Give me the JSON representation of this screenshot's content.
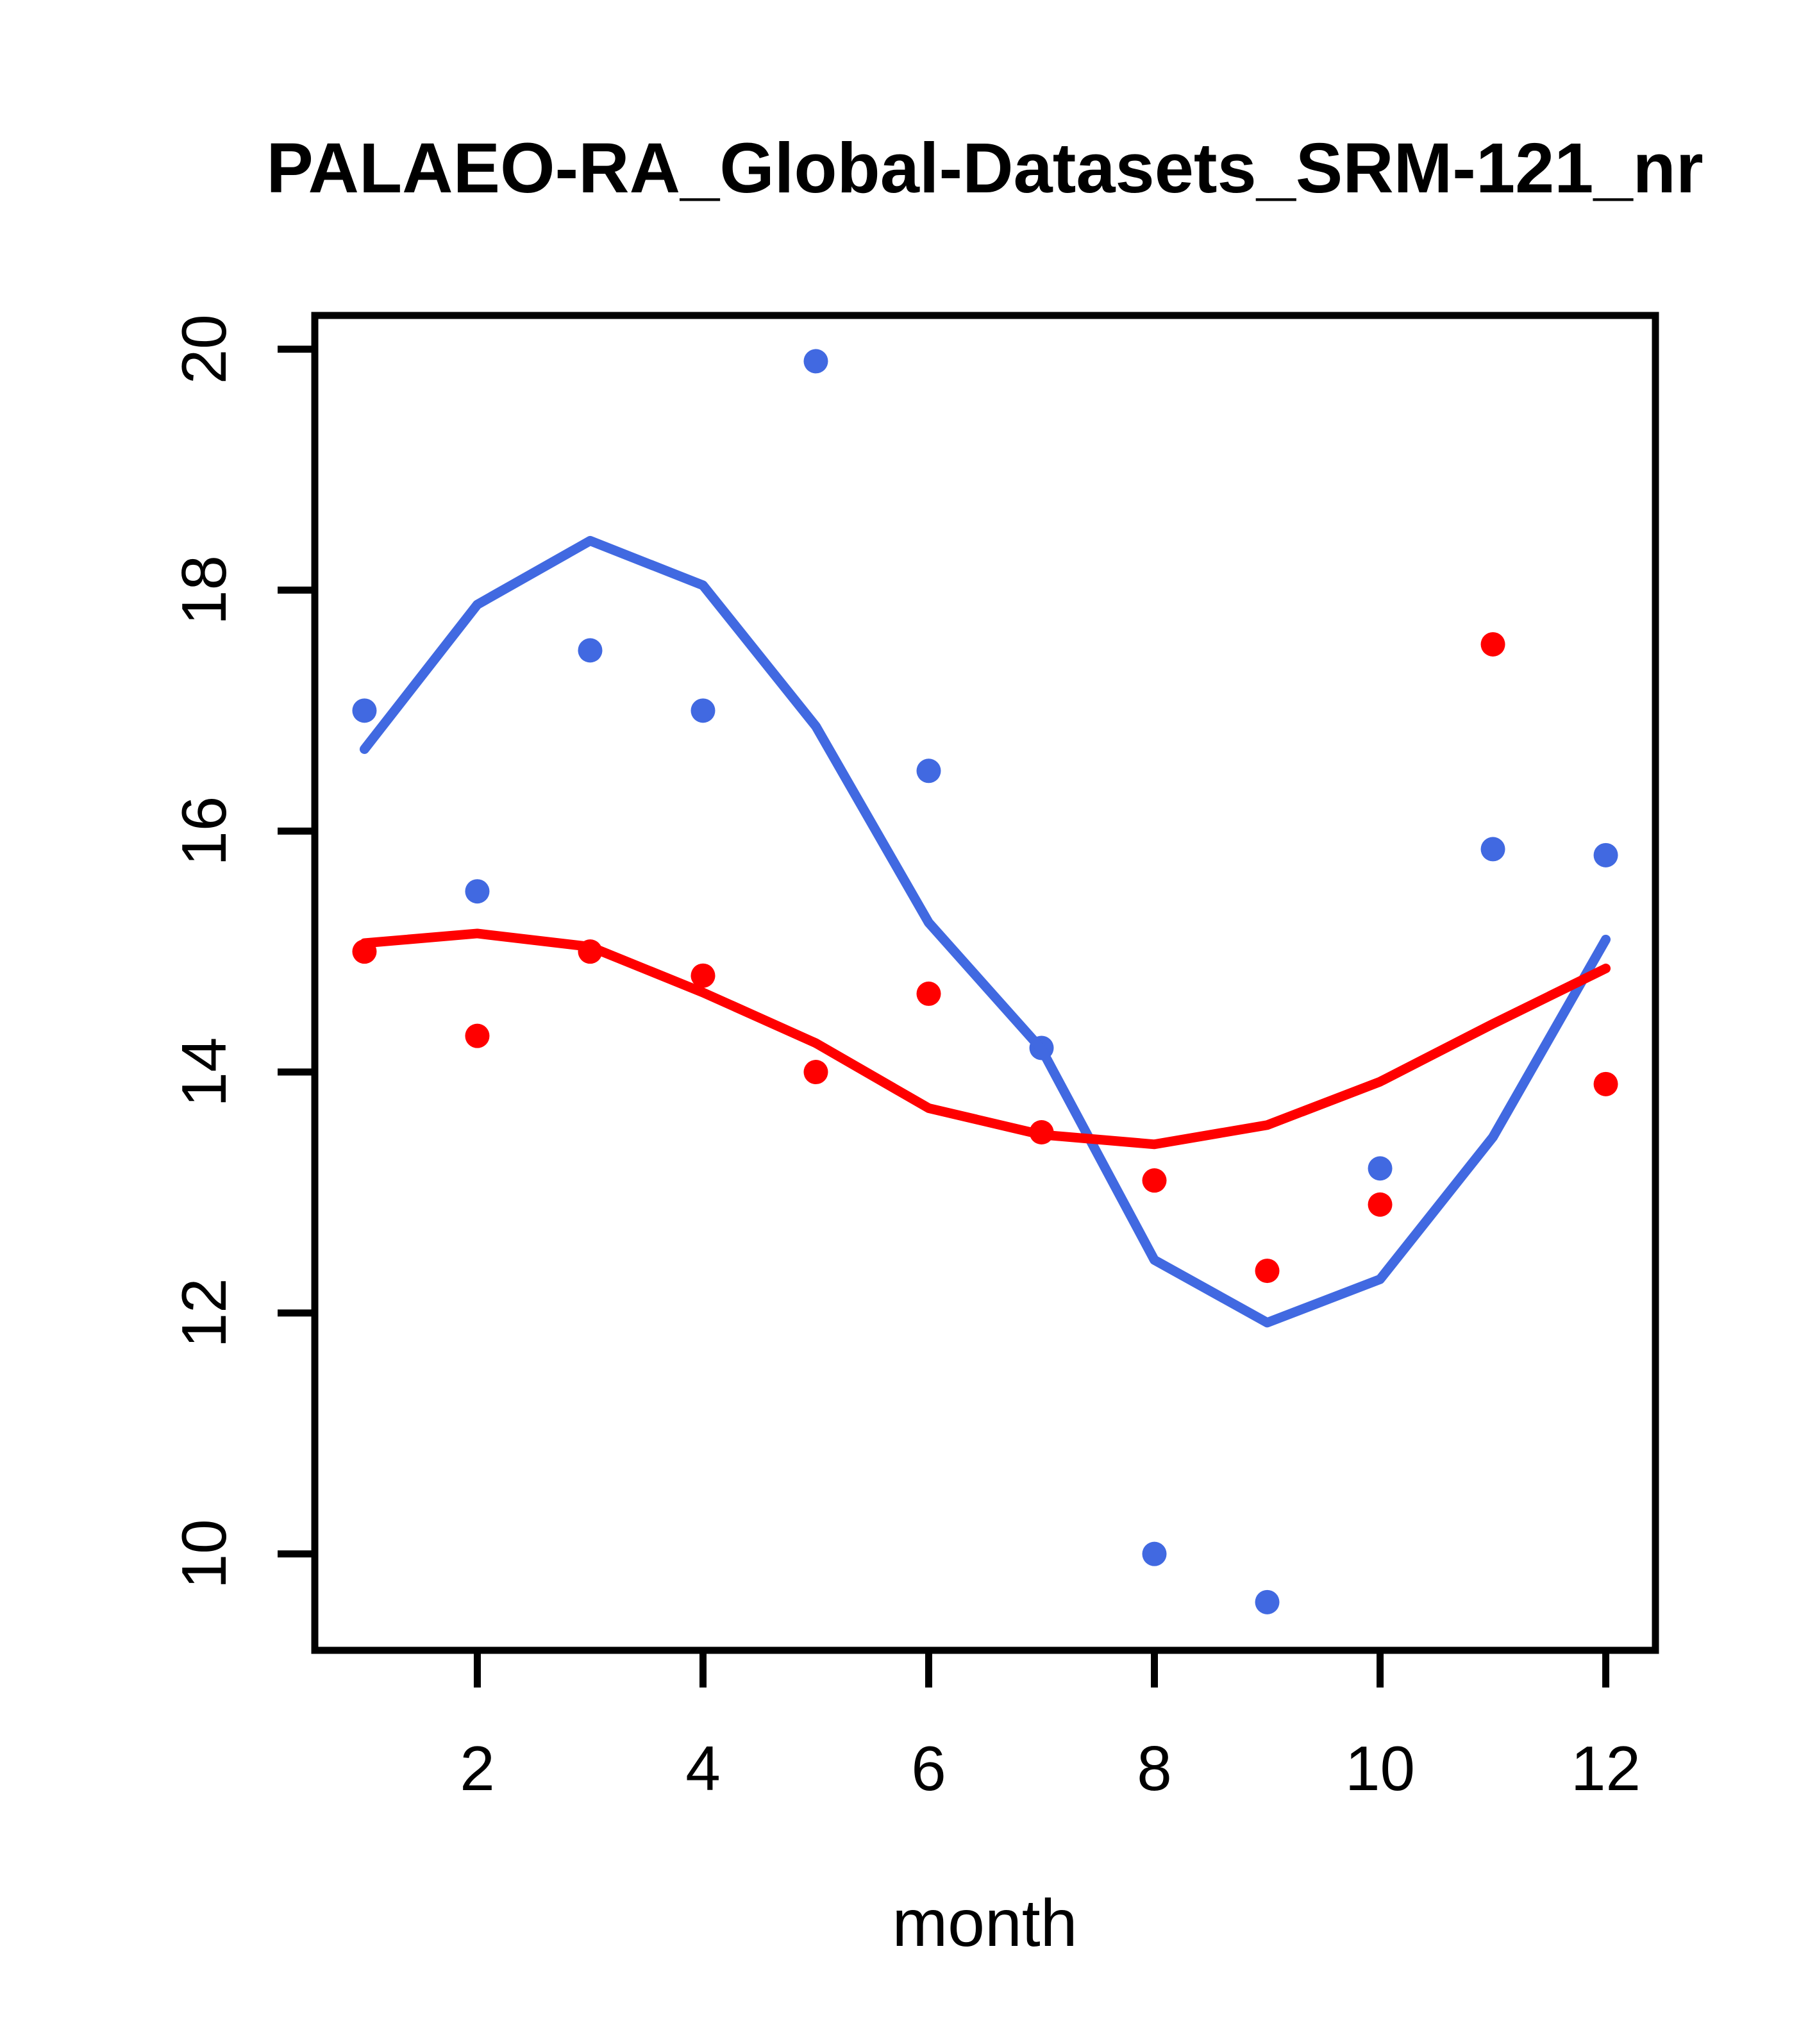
{
  "chart_data": {
    "type": "scatter",
    "title": "PALAEO-RA_Global-Datasets_SRM-121_nr",
    "xlabel": "month",
    "ylabel": "",
    "x": [
      1,
      2,
      3,
      4,
      5,
      6,
      7,
      8,
      9,
      10,
      11,
      12
    ],
    "x_ticks": [
      2,
      4,
      6,
      8,
      10,
      12
    ],
    "y_ticks": [
      10,
      12,
      14,
      16,
      18,
      20
    ],
    "xlim": [
      0.56,
      12.44
    ],
    "ylim": [
      9.2,
      20.28
    ],
    "grid": false,
    "legend": "none",
    "colors": {
      "blue": "#4169E1",
      "red": "#FF0000",
      "axis": "#000000"
    },
    "series": [
      {
        "name": "blue-scatter",
        "kind": "points",
        "color": "#4169E1",
        "values": [
          17.0,
          15.5,
          17.5,
          17.0,
          19.9,
          16.5,
          14.2,
          10.0,
          9.6,
          13.2,
          15.85,
          15.8
        ]
      },
      {
        "name": "red-scatter",
        "kind": "points",
        "color": "#FF0000",
        "values": [
          15.0,
          14.3,
          15.0,
          14.8,
          14.0,
          14.65,
          13.5,
          13.1,
          12.35,
          12.9,
          17.55,
          13.9
        ]
      },
      {
        "name": "blue-smooth",
        "kind": "line",
        "color": "#4169E1",
        "values": [
          16.68,
          17.88,
          18.41,
          18.04,
          16.87,
          15.24,
          14.19,
          12.44,
          11.92,
          12.28,
          13.46,
          15.1
        ]
      },
      {
        "name": "red-smooth",
        "kind": "line",
        "color": "#FF0000",
        "values": [
          15.07,
          15.15,
          15.04,
          14.66,
          14.24,
          13.7,
          13.48,
          13.4,
          13.56,
          13.92,
          14.4,
          14.86
        ]
      }
    ]
  }
}
